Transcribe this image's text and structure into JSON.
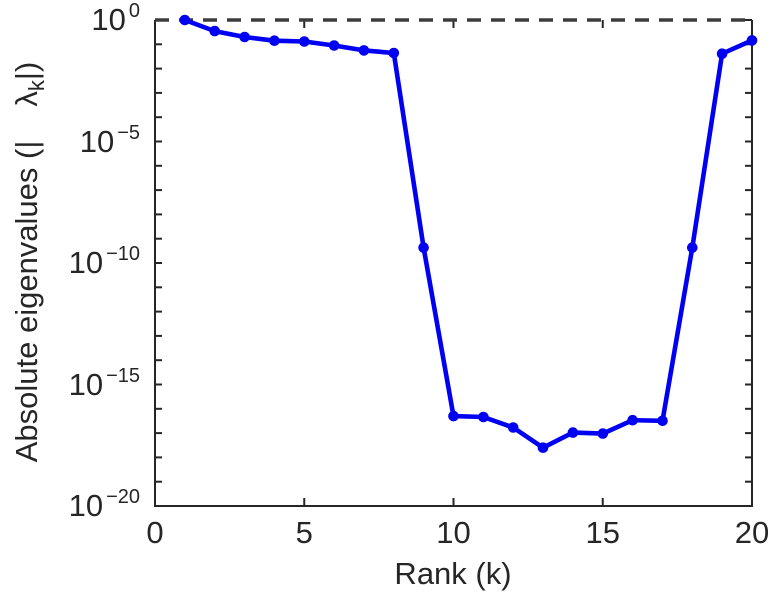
{
  "figure": {
    "background": "#ffffff"
  },
  "chart_data": {
    "type": "line",
    "title": "",
    "xlabel": "Rank (k)",
    "ylabel": {
      "prefix": "Absolute eigenvalues (|",
      "symbol": "λ",
      "subscript": "k",
      "suffix": "|)"
    },
    "yscale": "log",
    "xlim": [
      0,
      20
    ],
    "ylim_log10": [
      -20,
      0
    ],
    "x_ticks": [
      0,
      5,
      10,
      15,
      20
    ],
    "y_major_tick_exponents": [
      0,
      -5,
      -10,
      -15,
      -20
    ],
    "y_minor_ticks_every_decade": true,
    "grid": false,
    "legend": "none",
    "x": [
      1,
      2,
      3,
      4,
      5,
      6,
      7,
      8,
      9,
      10,
      11,
      12,
      13,
      14,
      15,
      16,
      17,
      18,
      19,
      20
    ],
    "values": [
      1.0,
      0.35,
      0.2,
      0.14,
      0.13,
      0.089,
      0.056,
      0.044,
      4.3e-10,
      5e-17,
      4.6e-17,
      1.7e-17,
      2.5e-18,
      1.05e-17,
      9.5e-18,
      3.4e-17,
      3.2e-17,
      4.3e-10,
      0.041,
      0.145
    ],
    "series_name": "absolute-eigenvalues",
    "line_color": "#0000f2",
    "marker": "filled-circle",
    "axis_color": "#262626",
    "reference_line": {
      "value": 1,
      "style": "dashed",
      "color": "#3d3d3d"
    }
  }
}
